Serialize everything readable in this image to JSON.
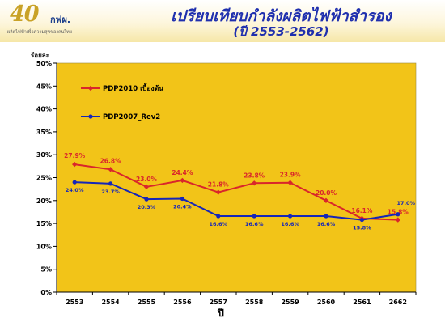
{
  "header": {
    "logo_mark": "40",
    "logo_text": "กฟผ.",
    "logo_tagline": "ผลิตไฟฟ้าเพื่อความสุขของคนไทย",
    "title": "เปรียบเทียบกำลังผลิตไฟฟ้าสำรอง",
    "subtitle": "(ปี 2553-2562)"
  },
  "colors": {
    "plot_background": "#f2c418",
    "series_1": "#d9262b",
    "series_2": "#1626b8",
    "title": "#1f2fae"
  },
  "chart_data": {
    "type": "line",
    "title": "",
    "xlabel": "ปี",
    "ylabel": "ร้อยละ",
    "categories": [
      "2553",
      "2554",
      "2555",
      "2556",
      "2557",
      "2558",
      "2559",
      "2560",
      "2561",
      "2662"
    ],
    "ylim": [
      0,
      50
    ],
    "yticks": [
      "0%",
      "5%",
      "10%",
      "15%",
      "20%",
      "25%",
      "30%",
      "35%",
      "40%",
      "45%",
      "50%"
    ],
    "grid": false,
    "legend": "top-left",
    "series": [
      {
        "name": "PDP2010 เบื้องต้น",
        "color": "#d9262b",
        "values": [
          27.9,
          26.8,
          23.0,
          24.4,
          21.8,
          23.8,
          23.9,
          20.0,
          16.1,
          15.8
        ],
        "labels": [
          "27.9%",
          "26.8%",
          "23.0%",
          "24.4%",
          "21.8%",
          "23.8%",
          "23.9%",
          "20.0%",
          "16.1%",
          "15.8%"
        ]
      },
      {
        "name": "PDP2007_Rev2",
        "color": "#1626b8",
        "values": [
          24.0,
          23.7,
          20.3,
          20.4,
          16.6,
          16.6,
          16.6,
          16.6,
          15.8,
          17.0
        ],
        "labels": [
          "24.0%",
          "23.7%",
          "20.3%",
          "20.4%",
          "16.6%",
          "16.6%",
          "16.6%",
          "16.6%",
          "15.8%",
          "17.0%"
        ]
      }
    ]
  }
}
